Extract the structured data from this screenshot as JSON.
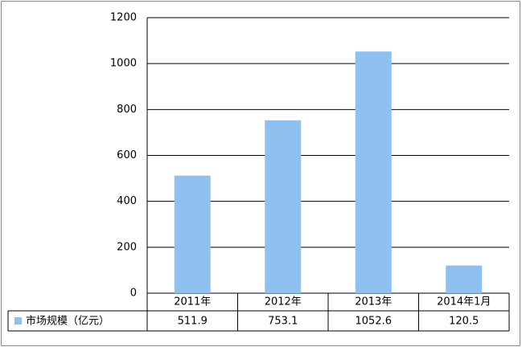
{
  "chart_data": {
    "type": "bar",
    "categories": [
      "2011年",
      "2012年",
      "2013年",
      "2014年1月"
    ],
    "series": [
      {
        "name": "市场规模（亿元）",
        "color": "#8ec1ef",
        "values": [
          511.9,
          753.1,
          1052.6,
          120.5
        ]
      }
    ],
    "ylim": [
      0,
      1200
    ],
    "yticks": [
      0,
      200,
      400,
      600,
      800,
      1000,
      1200
    ],
    "grid": true
  }
}
